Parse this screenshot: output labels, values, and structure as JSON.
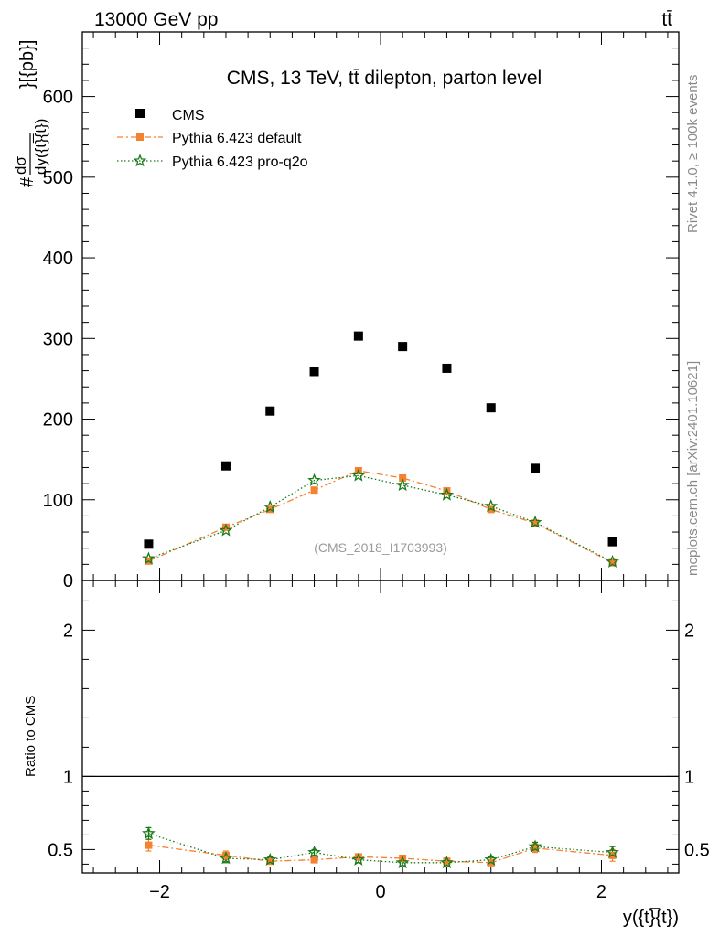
{
  "header": {
    "left": "13000 GeV pp",
    "right": "tt̄"
  },
  "side_labels": {
    "rivet": "Rivet 4.1.0, ≥ 100k events",
    "mcplots": "mcplots.cern.ch [arXiv:2401.10621]"
  },
  "watermark": "(CMS_2018_I1703993)",
  "colors": {
    "data": "#000000",
    "default": "#f58231",
    "proq2o": "#1a7a1a"
  },
  "chart_data": [
    {
      "type": "scatter",
      "title": "CMS, 13 TeV, tt̄ dilepton, parton level",
      "ylabel_top": "dσ",
      "ylabel_prefix": "#",
      "ylabel_bottom": "dy({t}̅{t})",
      "ylabel_unit": "}[{pb}]",
      "xlim": [
        -2.7,
        2.7
      ],
      "ylim": [
        0,
        680
      ],
      "yticks": [
        0,
        100,
        200,
        300,
        400,
        500,
        600
      ],
      "ytick_labels": [
        "0",
        "100",
        "200",
        "300",
        "400",
        "500",
        "600"
      ],
      "legend_position": "top-left",
      "series": [
        {
          "name": "CMS",
          "key": "data",
          "x": [
            -2.1,
            -1.4,
            -1.0,
            -0.6,
            -0.2,
            0.2,
            0.6,
            1.0,
            1.4,
            2.1
          ],
          "y": [
            45,
            142,
            210,
            259,
            303,
            290,
            263,
            214,
            139,
            48
          ]
        },
        {
          "name": "Pythia 6.423 default",
          "key": "default",
          "x": [
            -2.1,
            -1.4,
            -1.0,
            -0.6,
            -0.2,
            0.2,
            0.6,
            1.0,
            1.4,
            2.1
          ],
          "y": [
            24,
            66,
            88,
            112,
            136,
            127,
            111,
            88,
            71,
            22
          ]
        },
        {
          "name": "Pythia 6.423 pro-q2o",
          "key": "proq2o",
          "x": [
            -2.1,
            -1.4,
            -1.0,
            -0.6,
            -0.2,
            0.2,
            0.6,
            1.0,
            1.4,
            2.1
          ],
          "y": [
            27,
            62,
            91,
            124,
            130,
            118,
            106,
            92,
            72,
            23
          ]
        }
      ]
    },
    {
      "type": "line",
      "ylabel": "Ratio to CMS",
      "xlabel": "y({t}̅{t})",
      "xlim": [
        -2.7,
        2.7
      ],
      "ylim": [
        0.34,
        2.34
      ],
      "xticks": [
        -2,
        0,
        2
      ],
      "xtick_labels": [
        "−2",
        "0",
        "2"
      ],
      "yticks": [
        0.5,
        1,
        2
      ],
      "ytick_labels": [
        "0.5",
        "1",
        "2"
      ],
      "reference_line": 1,
      "series": [
        {
          "name": "Pythia 6.423 default",
          "key": "default",
          "x": [
            -2.1,
            -1.4,
            -1.0,
            -0.6,
            -0.2,
            0.2,
            0.6,
            1.0,
            1.4,
            2.1
          ],
          "y": [
            0.53,
            0.46,
            0.42,
            0.43,
            0.45,
            0.44,
            0.42,
            0.41,
            0.51,
            0.46
          ],
          "err": [
            0.04,
            0.03,
            0.02,
            0.02,
            0.02,
            0.02,
            0.02,
            0.02,
            0.03,
            0.04
          ]
        },
        {
          "name": "Pythia 6.423 pro-q2o",
          "key": "proq2o",
          "x": [
            -2.1,
            -1.4,
            -1.0,
            -0.6,
            -0.2,
            0.2,
            0.6,
            1.0,
            1.4,
            2.1
          ],
          "y": [
            0.61,
            0.44,
            0.43,
            0.48,
            0.43,
            0.41,
            0.41,
            0.43,
            0.52,
            0.48
          ],
          "err": [
            0.04,
            0.03,
            0.02,
            0.02,
            0.02,
            0.02,
            0.02,
            0.02,
            0.03,
            0.04
          ]
        }
      ]
    }
  ]
}
